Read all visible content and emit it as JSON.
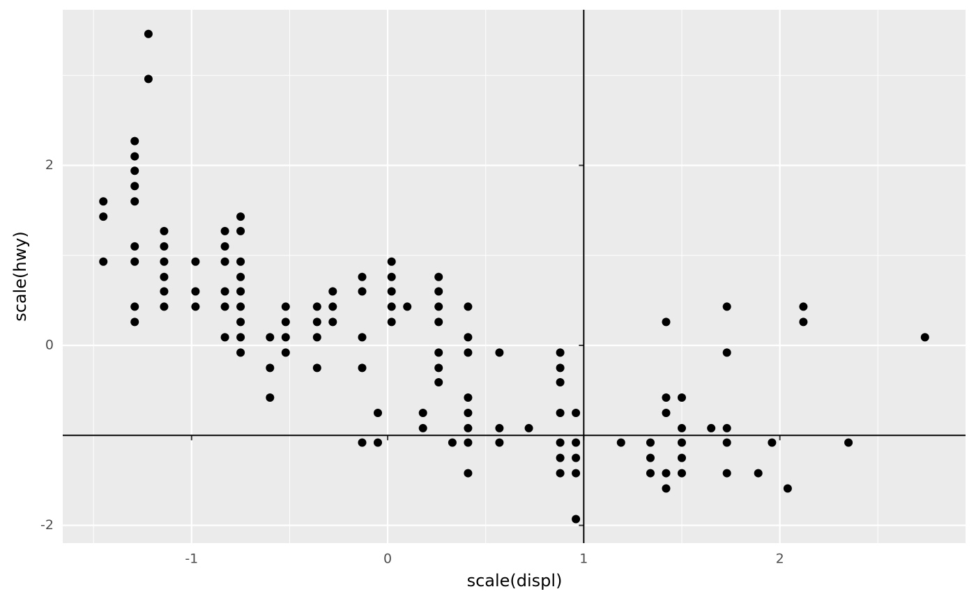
{
  "chart_data": {
    "type": "scatter",
    "x_label": "scale(displ)",
    "y_label": "scale(hwy)",
    "x": [
      -1.45,
      -1.45,
      -1.45,
      -1.29,
      -1.29,
      -1.29,
      -1.29,
      -1.29,
      -1.29,
      -1.29,
      -1.29,
      -1.29,
      -1.22,
      -1.22,
      -1.14,
      -1.14,
      -1.14,
      -1.14,
      -1.14,
      -1.14,
      -0.98,
      -0.98,
      -0.98,
      -0.83,
      -0.83,
      -0.83,
      -0.83,
      -0.83,
      -0.83,
      -0.75,
      -0.75,
      -0.75,
      -0.75,
      -0.75,
      -0.75,
      -0.75,
      -0.75,
      -0.75,
      -0.6,
      -0.6,
      -0.6,
      -0.52,
      -0.52,
      -0.52,
      -0.52,
      -0.36,
      -0.36,
      -0.36,
      -0.36,
      -0.28,
      -0.28,
      -0.28,
      -0.13,
      -0.13,
      -0.13,
      -0.13,
      -0.13,
      -0.05,
      -0.05,
      0.02,
      0.02,
      0.02,
      0.02,
      0.02,
      0.1,
      0.18,
      0.18,
      0.26,
      0.26,
      0.26,
      0.26,
      0.26,
      0.26,
      0.26,
      0.33,
      0.41,
      0.41,
      0.41,
      0.41,
      0.41,
      0.41,
      0.41,
      0.41,
      0.57,
      0.57,
      0.57,
      0.72,
      0.88,
      0.88,
      0.88,
      0.88,
      0.88,
      0.88,
      0.88,
      0.96,
      0.96,
      0.96,
      0.96,
      0.96,
      1.19,
      1.34,
      1.34,
      1.34,
      1.42,
      1.42,
      1.42,
      1.42,
      1.42,
      1.5,
      1.5,
      1.5,
      1.5,
      1.5,
      1.65,
      1.73,
      1.73,
      1.73,
      1.73,
      1.73,
      1.89,
      1.96,
      2.04,
      2.12,
      2.12,
      2.35,
      2.74
    ],
    "values": [
      1.6,
      1.43,
      0.93,
      2.27,
      2.1,
      1.94,
      1.77,
      1.6,
      1.1,
      0.93,
      0.43,
      0.26,
      3.46,
      2.96,
      1.27,
      1.1,
      0.93,
      0.76,
      0.6,
      0.43,
      0.93,
      0.6,
      0.43,
      1.27,
      1.1,
      0.93,
      0.6,
      0.43,
      0.09,
      1.43,
      1.27,
      0.93,
      0.76,
      0.6,
      0.43,
      0.26,
      0.09,
      -0.08,
      0.09,
      -0.25,
      -0.58,
      0.43,
      0.26,
      0.09,
      -0.08,
      0.43,
      0.26,
      0.09,
      -0.25,
      0.6,
      0.43,
      0.26,
      0.76,
      0.6,
      0.09,
      -0.25,
      -1.08,
      -0.75,
      -1.08,
      0.93,
      0.76,
      0.6,
      0.43,
      0.26,
      0.43,
      -0.75,
      -0.92,
      0.76,
      0.6,
      0.43,
      0.26,
      -0.08,
      -0.25,
      -0.41,
      -1.08,
      0.43,
      0.09,
      -0.08,
      -0.58,
      -0.75,
      -0.92,
      -1.08,
      -1.42,
      -0.08,
      -0.92,
      -1.08,
      -0.92,
      -0.08,
      -0.25,
      -0.41,
      -0.75,
      -1.08,
      -1.25,
      -1.42,
      -0.75,
      -1.08,
      -1.25,
      -1.42,
      -1.93,
      -1.08,
      -1.08,
      -1.25,
      -1.42,
      0.26,
      -0.58,
      -0.75,
      -1.42,
      -1.59,
      -0.58,
      -0.92,
      -1.08,
      -1.25,
      -1.42,
      -0.92,
      0.43,
      -0.08,
      -0.92,
      -1.08,
      -1.42,
      -1.42,
      -1.08,
      -1.59,
      0.43,
      0.26,
      -1.08,
      0.09
    ],
    "color": "#000000",
    "xlim": [
      -1.657,
      2.947
    ],
    "ylim": [
      -2.197,
      3.729
    ],
    "xticks": [
      -1,
      0,
      1,
      2
    ],
    "yticks": [
      -2,
      0,
      2
    ],
    "xminor": [
      -1.5,
      -0.5,
      0.5,
      1.5,
      2.5
    ],
    "yminor": [
      -1,
      1,
      3
    ],
    "vline": 1,
    "hline": -1,
    "grid": true
  }
}
